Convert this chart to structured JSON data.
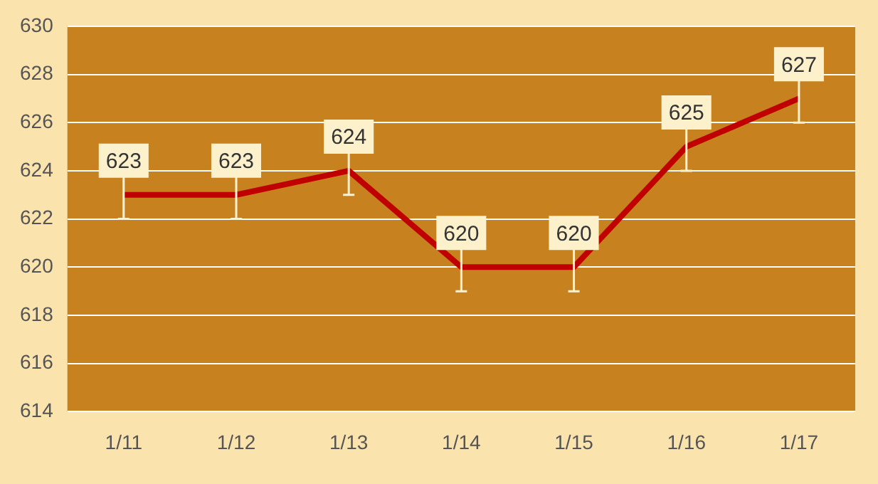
{
  "chart_data": {
    "type": "line",
    "categories": [
      "1/11",
      "1/12",
      "1/13",
      "1/14",
      "1/15",
      "1/16",
      "1/17"
    ],
    "series": [
      {
        "color": "#c00000",
        "values": [
          623,
          623,
          624,
          620,
          620,
          625,
          627
        ],
        "errors": [
          1,
          1,
          1,
          1,
          1,
          1,
          1
        ]
      }
    ],
    "ylim": [
      614,
      630
    ],
    "yticks": [
      614,
      616,
      618,
      620,
      622,
      624,
      626,
      628,
      630
    ],
    "grid": "y",
    "legend": false,
    "marker": "none",
    "line_style": "solid",
    "data_labels": true
  }
}
